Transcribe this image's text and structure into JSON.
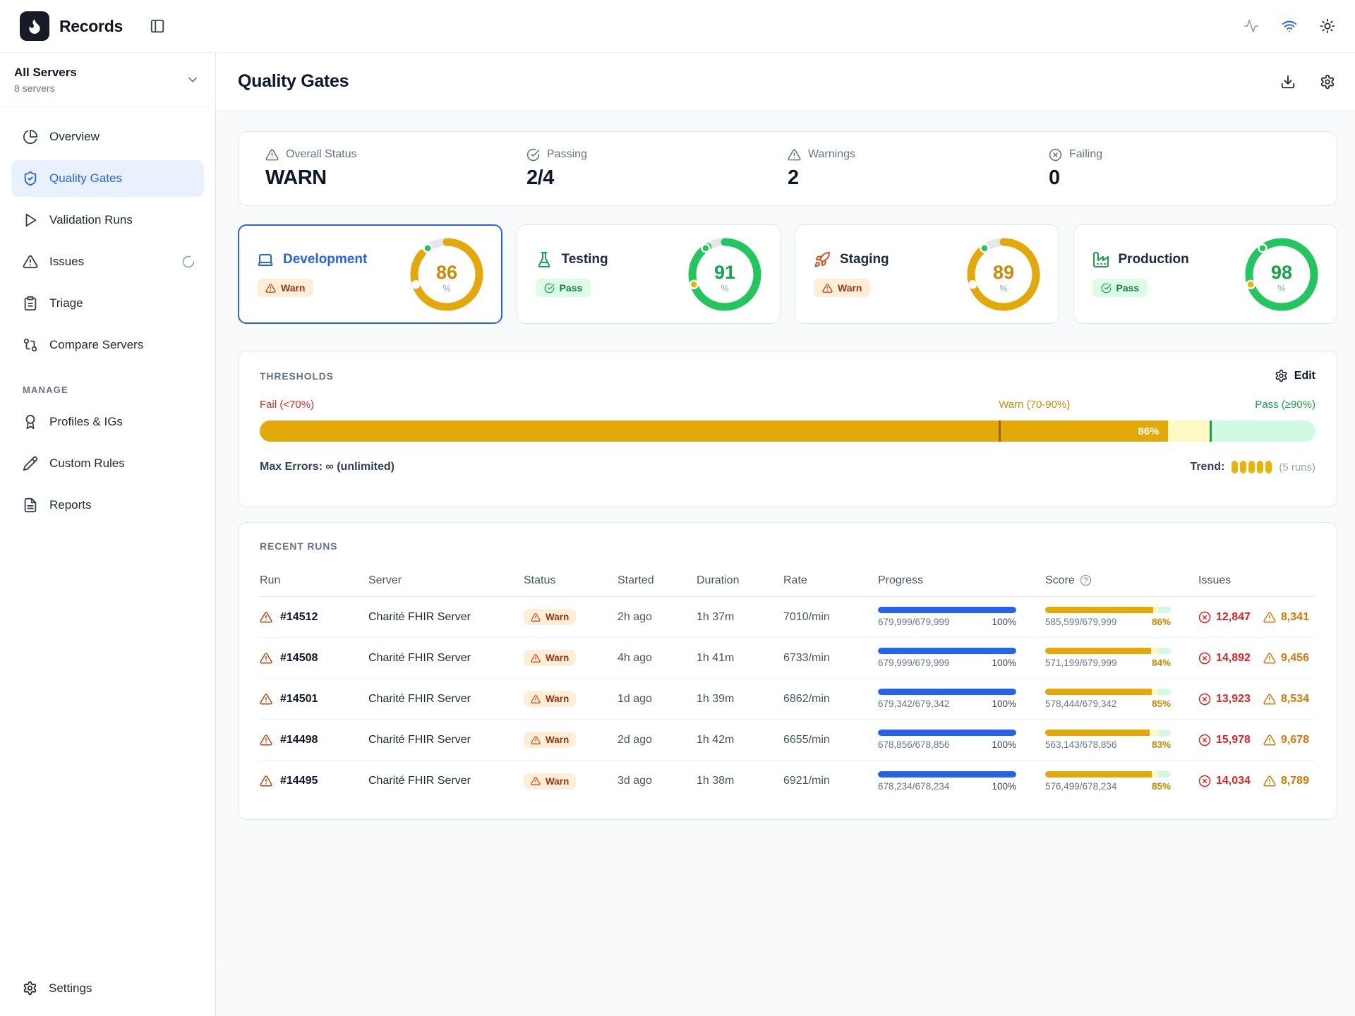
{
  "colors": {
    "accent": "#2563eb",
    "gold": "#eab308",
    "green": "#22c55e",
    "red": "#dc2626"
  },
  "topbar": {
    "app_name": "Records",
    "icons": [
      "activity",
      "wifi",
      "sun"
    ]
  },
  "server_selector": {
    "title": "All Servers",
    "subtitle": "8 servers"
  },
  "sidebar": {
    "nav": [
      {
        "label": "Overview",
        "icon": "pie-chart",
        "active": false
      },
      {
        "label": "Quality Gates",
        "icon": "shield-check",
        "active": true
      },
      {
        "label": "Validation Runs",
        "icon": "play",
        "active": false
      },
      {
        "label": "Issues",
        "icon": "alert-triangle",
        "active": false,
        "trailing": "spinner"
      },
      {
        "label": "Triage",
        "icon": "clipboard",
        "active": false
      },
      {
        "label": "Compare Servers",
        "icon": "git-compare",
        "active": false
      }
    ],
    "section_label": "MANAGE",
    "manage": [
      {
        "label": "Profiles & IGs",
        "icon": "award"
      },
      {
        "label": "Custom Rules",
        "icon": "pencil"
      },
      {
        "label": "Reports",
        "icon": "file-text"
      }
    ],
    "footer": {
      "label": "Settings",
      "icon": "settings"
    }
  },
  "page": {
    "title": "Quality Gates",
    "actions": [
      "download",
      "settings"
    ]
  },
  "summary": [
    {
      "label": "Overall Status",
      "value": "WARN",
      "icon": "alert-triangle"
    },
    {
      "label": "Passing",
      "value": "2/4",
      "icon": "check-circle"
    },
    {
      "label": "Warnings",
      "value": "2",
      "icon": "alert-triangle"
    },
    {
      "label": "Failing",
      "value": "0",
      "icon": "x-circle"
    }
  ],
  "environments": [
    {
      "name": "Development",
      "icon": "laptop",
      "icon_color": "#2563eb",
      "name_color": "#2563eb",
      "badge": "Warn",
      "value": 86,
      "ring": "gold",
      "selected": true
    },
    {
      "name": "Testing",
      "icon": "flask",
      "icon_color": "#16a34a",
      "name_color": "#1e293b",
      "badge": "Pass",
      "value": 91,
      "ring": "green",
      "selected": false
    },
    {
      "name": "Staging",
      "icon": "rocket",
      "icon_color": "#db4e1e",
      "name_color": "#1e293b",
      "badge": "Warn",
      "value": 89,
      "ring": "gold",
      "selected": false
    },
    {
      "name": "Production",
      "icon": "factory",
      "icon_color": "#16a34a",
      "name_color": "#1e293b",
      "badge": "Pass",
      "value": 98,
      "ring": "green",
      "selected": false
    }
  ],
  "thresholds": {
    "title": "THRESHOLDS",
    "edit_label": "Edit",
    "zones": {
      "fail": "Fail (<70%)",
      "warn": "Warn (70-90%)",
      "pass": "Pass (≥90%)"
    },
    "fail_max_pct": 70,
    "pass_min_pct": 90,
    "current_pct": 86,
    "current_label": "86%",
    "max_errors": "Max Errors: ∞ (unlimited)",
    "trend_label": "Trend:",
    "trend_count": 5,
    "trend_caption": "(5 runs)"
  },
  "recent_runs": {
    "title": "RECENT RUNS",
    "columns": [
      "Run",
      "Server",
      "Status",
      "Started",
      "Duration",
      "Rate",
      "Progress",
      "Score",
      "Issues"
    ],
    "rows": [
      {
        "run": "#14512",
        "server": "Charité FHIR Server",
        "status": "Warn",
        "started": "2h ago",
        "duration": "1h 37m",
        "rate": "7010/min",
        "progress": "679,999/679,999",
        "progress_pct": 100,
        "progress_pct_label": "100%",
        "score": "585,599/679,999",
        "score_pct": 86,
        "score_pct_label": "86%",
        "errors": "12,847",
        "warnings": "8,341"
      },
      {
        "run": "#14508",
        "server": "Charité FHIR Server",
        "status": "Warn",
        "started": "4h ago",
        "duration": "1h 41m",
        "rate": "6733/min",
        "progress": "679,999/679,999",
        "progress_pct": 100,
        "progress_pct_label": "100%",
        "score": "571,199/679,999",
        "score_pct": 84,
        "score_pct_label": "84%",
        "errors": "14,892",
        "warnings": "9,456"
      },
      {
        "run": "#14501",
        "server": "Charité FHIR Server",
        "status": "Warn",
        "started": "1d ago",
        "duration": "1h 39m",
        "rate": "6862/min",
        "progress": "679,342/679,342",
        "progress_pct": 100,
        "progress_pct_label": "100%",
        "score": "578,444/679,342",
        "score_pct": 85,
        "score_pct_label": "85%",
        "errors": "13,923",
        "warnings": "8,534"
      },
      {
        "run": "#14498",
        "server": "Charité FHIR Server",
        "status": "Warn",
        "started": "2d ago",
        "duration": "1h 42m",
        "rate": "6655/min",
        "progress": "678,856/678,856",
        "progress_pct": 100,
        "progress_pct_label": "100%",
        "score": "563,143/678,856",
        "score_pct": 83,
        "score_pct_label": "83%",
        "errors": "15,978",
        "warnings": "9,678"
      },
      {
        "run": "#14495",
        "server": "Charité FHIR Server",
        "status": "Warn",
        "started": "3d ago",
        "duration": "1h 38m",
        "rate": "6921/min",
        "progress": "678,234/678,234",
        "progress_pct": 100,
        "progress_pct_label": "100%",
        "score": "576,499/678,234",
        "score_pct": 85,
        "score_pct_label": "85%",
        "errors": "14,034",
        "warnings": "8,789"
      }
    ]
  }
}
